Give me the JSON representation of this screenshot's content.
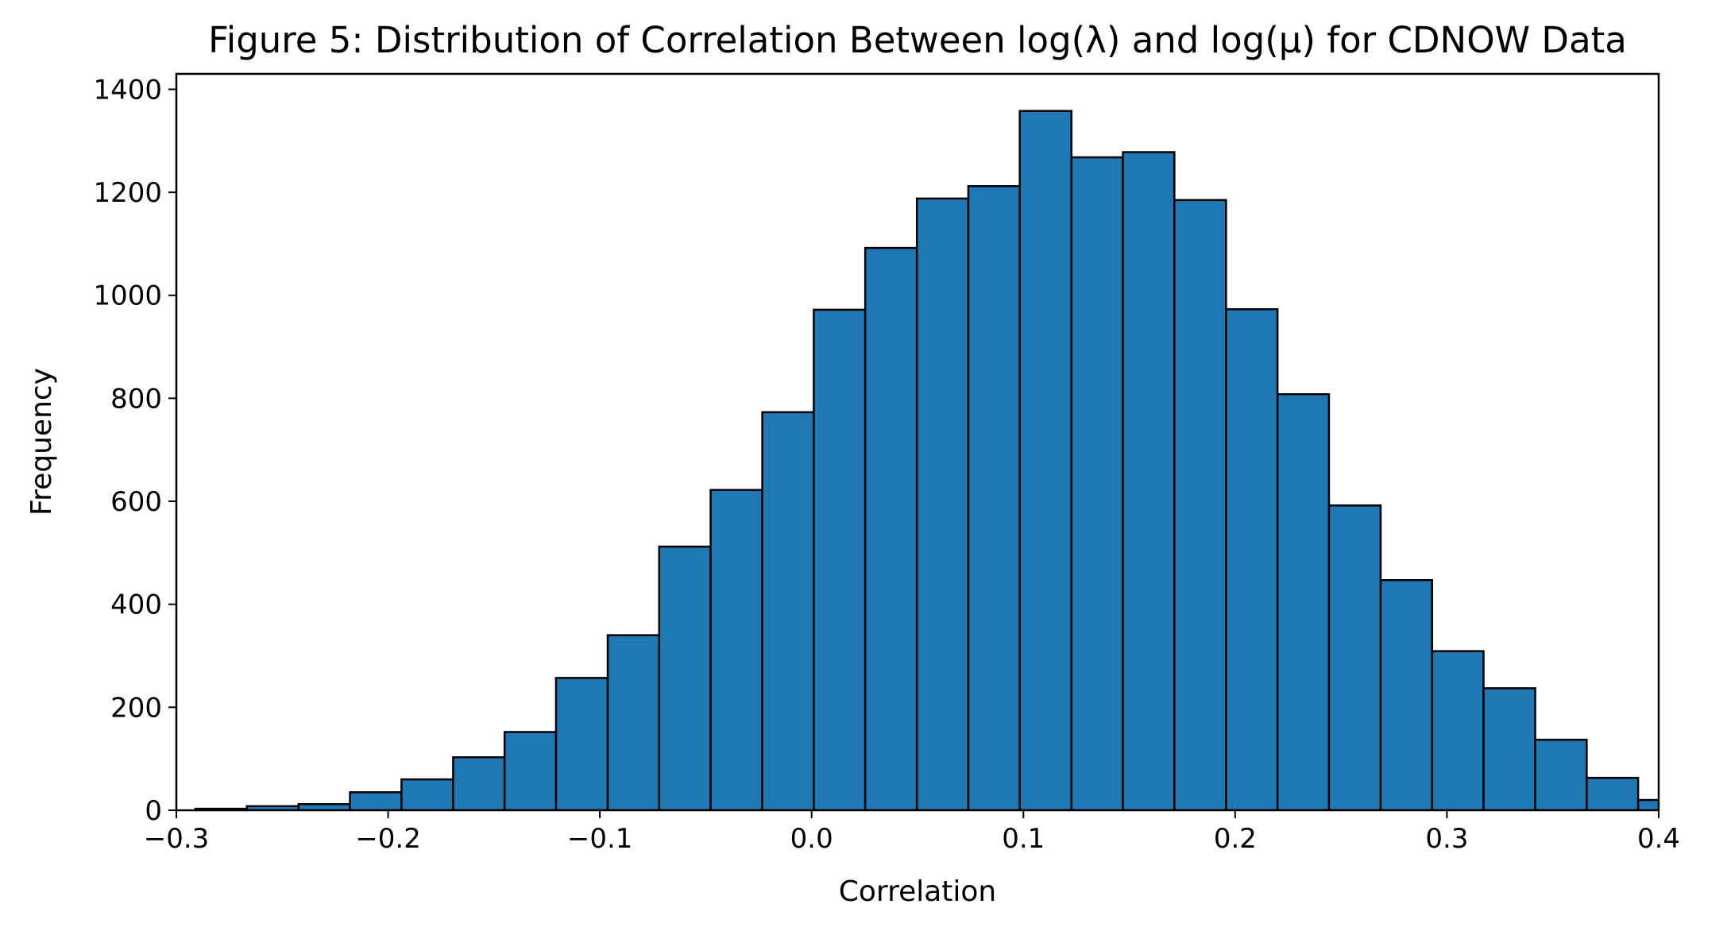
{
  "chart_data": {
    "type": "bar",
    "title": "Figure 5: Distribution of Correlation Between log(λ) and log(μ) for CDNOW Data",
    "xlabel": "Correlation",
    "ylabel": "Frequency",
    "xlim": [
      -0.3,
      0.4
    ],
    "ylim": [
      0,
      1430
    ],
    "grid": false,
    "legend": "none",
    "bar_color": "#1f77b4",
    "edge_color": "#000000",
    "x_ticks": [
      -0.3,
      -0.2,
      -0.1,
      0.0,
      0.1,
      0.2,
      0.3,
      0.4
    ],
    "x_tick_labels": [
      "−0.3",
      "−0.2",
      "−0.1",
      "0.0",
      "0.1",
      "0.2",
      "0.3",
      "0.4"
    ],
    "y_ticks": [
      0,
      200,
      400,
      600,
      800,
      1000,
      1200,
      1400
    ],
    "y_tick_labels": [
      "0",
      "200",
      "400",
      "600",
      "800",
      "1000",
      "1200",
      "1400"
    ],
    "bins": [
      {
        "x0": -0.291,
        "x1": -0.2667,
        "count": 3
      },
      {
        "x0": -0.2667,
        "x1": -0.2423,
        "count": 8
      },
      {
        "x0": -0.2423,
        "x1": -0.218,
        "count": 12
      },
      {
        "x0": -0.218,
        "x1": -0.1937,
        "count": 35
      },
      {
        "x0": -0.1937,
        "x1": -0.1693,
        "count": 60
      },
      {
        "x0": -0.1693,
        "x1": -0.145,
        "count": 103
      },
      {
        "x0": -0.145,
        "x1": -0.1207,
        "count": 152
      },
      {
        "x0": -0.1207,
        "x1": -0.0963,
        "count": 257
      },
      {
        "x0": -0.0963,
        "x1": -0.072,
        "count": 340
      },
      {
        "x0": -0.072,
        "x1": -0.0477,
        "count": 512
      },
      {
        "x0": -0.0477,
        "x1": -0.0233,
        "count": 622
      },
      {
        "x0": -0.0233,
        "x1": 0.001,
        "count": 773
      },
      {
        "x0": 0.001,
        "x1": 0.0253,
        "count": 972
      },
      {
        "x0": 0.0253,
        "x1": 0.0497,
        "count": 1092
      },
      {
        "x0": 0.0497,
        "x1": 0.074,
        "count": 1188
      },
      {
        "x0": 0.074,
        "x1": 0.0983,
        "count": 1212
      },
      {
        "x0": 0.0983,
        "x1": 0.1227,
        "count": 1358
      },
      {
        "x0": 0.1227,
        "x1": 0.147,
        "count": 1268
      },
      {
        "x0": 0.147,
        "x1": 0.1713,
        "count": 1278
      },
      {
        "x0": 0.1713,
        "x1": 0.1957,
        "count": 1185
      },
      {
        "x0": 0.1957,
        "x1": 0.22,
        "count": 973
      },
      {
        "x0": 0.22,
        "x1": 0.2443,
        "count": 808
      },
      {
        "x0": 0.2443,
        "x1": 0.2687,
        "count": 592
      },
      {
        "x0": 0.2687,
        "x1": 0.293,
        "count": 447
      },
      {
        "x0": 0.293,
        "x1": 0.3173,
        "count": 309
      },
      {
        "x0": 0.3173,
        "x1": 0.3417,
        "count": 237
      },
      {
        "x0": 0.3417,
        "x1": 0.366,
        "count": 137
      },
      {
        "x0": 0.366,
        "x1": 0.3903,
        "count": 63
      },
      {
        "x0": 0.3903,
        "x1": 0.4147,
        "count": 20
      }
    ]
  }
}
